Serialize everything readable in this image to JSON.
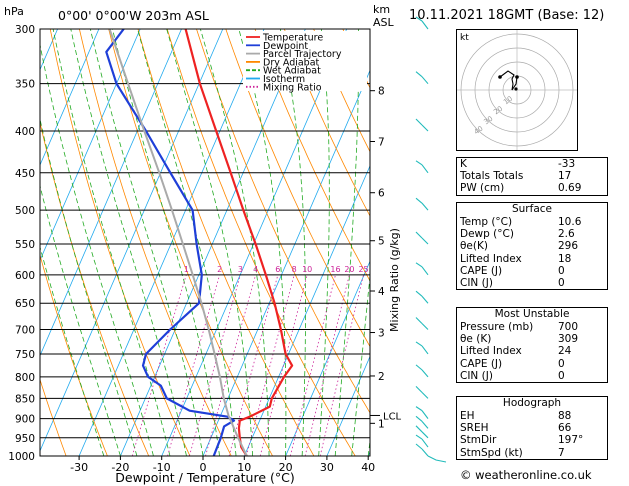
{
  "header": {
    "pressure_unit": "hPa",
    "location": "0°00'  0°00'W  203m  ASL",
    "km_label": "km",
    "asl_label": "ASL",
    "datetime": "10.11.2021  18GMT  (Base: 12)"
  },
  "chart_data": {
    "type": "line",
    "xlabel": "Dewpoint / Temperature (°C)",
    "ylabel": "hPa",
    "x_ticks": [
      -30,
      -20,
      -10,
      0,
      10,
      20,
      30,
      40
    ],
    "pressure_levels": [
      300,
      350,
      400,
      450,
      500,
      550,
      600,
      650,
      700,
      750,
      800,
      850,
      900,
      950,
      1000
    ],
    "km_ticks": [
      {
        "label": "8",
        "p": 357
      },
      {
        "label": "7",
        "p": 412
      },
      {
        "label": "6",
        "p": 476
      },
      {
        "label": "5",
        "p": 545
      },
      {
        "label": "4",
        "p": 628
      },
      {
        "label": "3",
        "p": 706
      },
      {
        "label": "2",
        "p": 798
      },
      {
        "label": "1",
        "p": 912
      }
    ],
    "lcl": {
      "label": "LCL",
      "p": 892
    },
    "mixing_ratio_label": "Mixing Ratio (g/kg)",
    "mixing_ratio_values": [
      "1",
      "2",
      "3",
      "4",
      "6",
      "8",
      "10",
      "16",
      "20",
      "25"
    ],
    "legend": [
      "Temperature",
      "Dewpoint",
      "Parcel Trajectory",
      "Dry Adiabat",
      "Wet Adiabat",
      "Isotherm",
      "Mixing Ratio"
    ],
    "series": [
      {
        "name": "Temperature",
        "color": "#ee2222",
        "points": [
          [
            1000,
            10.6
          ],
          [
            975,
            8.3
          ],
          [
            950,
            7.0
          ],
          [
            925,
            5.8
          ],
          [
            905,
            5.2
          ],
          [
            895,
            7.2
          ],
          [
            870,
            11.0
          ],
          [
            850,
            10.6
          ],
          [
            800,
            11.3
          ],
          [
            775,
            12.1
          ],
          [
            750,
            9.3
          ],
          [
            700,
            5.6
          ],
          [
            650,
            1.3
          ],
          [
            600,
            -3.8
          ],
          [
            550,
            -9.5
          ],
          [
            500,
            -16.0
          ],
          [
            450,
            -23.0
          ],
          [
            400,
            -30.9
          ],
          [
            350,
            -39.8
          ],
          [
            300,
            -49.0
          ]
        ]
      },
      {
        "name": "Dewpoint",
        "color": "#1f3fd8",
        "points": [
          [
            1000,
            2.6
          ],
          [
            950,
            2.4
          ],
          [
            920,
            2.0
          ],
          [
            905,
            3.8
          ],
          [
            895,
            1.8
          ],
          [
            880,
            -8.0
          ],
          [
            850,
            -14.8
          ],
          [
            820,
            -17.6
          ],
          [
            800,
            -21.6
          ],
          [
            775,
            -24.0
          ],
          [
            750,
            -24.5
          ],
          [
            700,
            -21.2
          ],
          [
            650,
            -17.0
          ],
          [
            600,
            -19.3
          ],
          [
            550,
            -23.8
          ],
          [
            500,
            -28.3
          ],
          [
            450,
            -37.6
          ],
          [
            400,
            -47.9
          ],
          [
            350,
            -60.0
          ],
          [
            320,
            -65.8
          ],
          [
            300,
            -64.0
          ]
        ]
      },
      {
        "name": "Parcel Trajectory",
        "color": "#aaaaaa",
        "points": [
          [
            1000,
            10.6
          ],
          [
            950,
            6.6
          ],
          [
            900,
            2.6
          ],
          [
            893,
            2.0
          ],
          [
            850,
            -1.0
          ],
          [
            800,
            -4.2
          ],
          [
            750,
            -7.9
          ],
          [
            700,
            -11.9
          ],
          [
            650,
            -16.4
          ],
          [
            600,
            -21.5
          ],
          [
            550,
            -27.1
          ],
          [
            500,
            -33.3
          ],
          [
            450,
            -40.3
          ],
          [
            400,
            -48.3
          ],
          [
            350,
            -57.2
          ],
          [
            300,
            -67.4
          ]
        ]
      }
    ]
  },
  "hodograph": {
    "label": "kt",
    "ring_labels": [
      "10",
      "20",
      "30",
      "40"
    ]
  },
  "indices": {
    "rows": [
      {
        "label": "K",
        "value": "-33"
      },
      {
        "label": "Totals Totals",
        "value": "17"
      },
      {
        "label": "PW (cm)",
        "value": "0.69"
      }
    ]
  },
  "surface": {
    "title": "Surface",
    "rows": [
      {
        "label": "Temp (°C)",
        "value": "10.6"
      },
      {
        "label": "Dewp (°C)",
        "value": "2.6"
      },
      {
        "label": "θe(K)",
        "value": "296"
      },
      {
        "label": "Lifted Index",
        "value": "18"
      },
      {
        "label": "CAPE (J)",
        "value": "0"
      },
      {
        "label": "CIN (J)",
        "value": "0"
      }
    ]
  },
  "unstable": {
    "title": "Most Unstable",
    "rows": [
      {
        "label": "Pressure (mb)",
        "value": "700"
      },
      {
        "label": "θe (K)",
        "value": "309"
      },
      {
        "label": "Lifted Index",
        "value": "24"
      },
      {
        "label": "CAPE (J)",
        "value": "0"
      },
      {
        "label": "CIN (J)",
        "value": "0"
      }
    ]
  },
  "hodo_box": {
    "title": "Hodograph",
    "rows": [
      {
        "label": "EH",
        "value": "88"
      },
      {
        "label": "SREH",
        "value": "66"
      },
      {
        "label": "StmDir",
        "value": "197°"
      },
      {
        "label": "StmSpd (kt)",
        "value": "7"
      }
    ]
  },
  "footer": "© weatheronline.co.uk",
  "colors": {
    "temperature": "#ee2222",
    "dewpoint": "#1f3fd8",
    "parcel": "#aaaaaa",
    "dry_adiabat": "#ff8800",
    "wet_adiabat": "#22aa22",
    "isotherm": "#22aaee",
    "mixing_ratio": "#cc2299",
    "wind": "#22bbbb"
  }
}
